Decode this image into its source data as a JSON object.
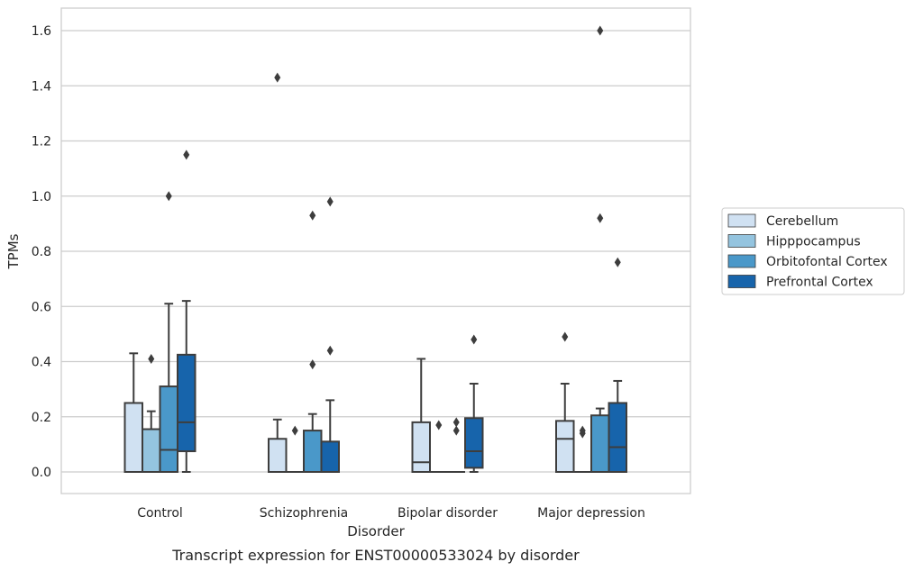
{
  "caption": "Transcript expression for ENST00000533024 by disorder",
  "chart_data": {
    "type": "box",
    "xlabel": "Disorder",
    "ylabel": "TPMs",
    "ylim": [
      -0.08,
      1.68
    ],
    "yticks": [
      "0.0",
      "0.2",
      "0.4",
      "0.6",
      "0.8",
      "1.0",
      "1.2",
      "1.4",
      "1.6"
    ],
    "grid": true,
    "legend_position": "right",
    "categories": [
      "Control",
      "Schizophrenia",
      "Bipolar disorder",
      "Major depression"
    ],
    "series": [
      {
        "name": "Cerebellum",
        "color": "#d0e1f2",
        "boxes": [
          {
            "q1": 0.0,
            "median": 0.0,
            "q3": 0.25,
            "whisker_low": 0.0,
            "whisker_high": 0.43,
            "outliers": []
          },
          {
            "q1": 0.0,
            "median": 0.0,
            "q3": 0.12,
            "whisker_low": 0.0,
            "whisker_high": 0.19,
            "outliers": [
              1.43
            ]
          },
          {
            "q1": 0.0,
            "median": 0.035,
            "q3": 0.18,
            "whisker_low": 0.0,
            "whisker_high": 0.41,
            "outliers": []
          },
          {
            "q1": 0.0,
            "median": 0.12,
            "q3": 0.185,
            "whisker_low": 0.0,
            "whisker_high": 0.32,
            "outliers": [
              0.49
            ]
          }
        ]
      },
      {
        "name": "Hipppocampus",
        "color": "#94c4df",
        "boxes": [
          {
            "q1": 0.0,
            "median": 0.0,
            "q3": 0.155,
            "whisker_low": 0.0,
            "whisker_high": 0.22,
            "outliers": [
              0.41
            ]
          },
          {
            "q1": 0.0,
            "median": 0.0,
            "q3": 0.0,
            "whisker_low": 0.0,
            "whisker_high": 0.0,
            "outliers": [
              0.15
            ]
          },
          {
            "q1": 0.0,
            "median": 0.0,
            "q3": 0.0,
            "whisker_low": 0.0,
            "whisker_high": 0.0,
            "outliers": [
              0.17
            ]
          },
          {
            "q1": 0.0,
            "median": 0.0,
            "q3": 0.0,
            "whisker_low": 0.0,
            "whisker_high": 0.0,
            "outliers": [
              0.14,
              0.15
            ]
          }
        ]
      },
      {
        "name": "Orbitofontal Cortex",
        "color": "#4a98c9",
        "boxes": [
          {
            "q1": 0.0,
            "median": 0.08,
            "q3": 0.31,
            "whisker_low": 0.0,
            "whisker_high": 0.61,
            "outliers": [
              1.0
            ]
          },
          {
            "q1": 0.0,
            "median": 0.0,
            "q3": 0.15,
            "whisker_low": 0.0,
            "whisker_high": 0.21,
            "outliers": [
              0.39,
              0.93
            ]
          },
          {
            "q1": 0.0,
            "median": 0.0,
            "q3": 0.0,
            "whisker_low": 0.0,
            "whisker_high": 0.0,
            "outliers": [
              0.15,
              0.18
            ]
          },
          {
            "q1": 0.0,
            "median": 0.0,
            "q3": 0.205,
            "whisker_low": 0.0,
            "whisker_high": 0.23,
            "outliers": [
              0.92,
              1.6
            ]
          }
        ]
      },
      {
        "name": "Prefrontal Cortex",
        "color": "#1764ab",
        "boxes": [
          {
            "q1": 0.075,
            "median": 0.18,
            "q3": 0.425,
            "whisker_low": 0.0,
            "whisker_high": 0.62,
            "outliers": [
              1.15
            ]
          },
          {
            "q1": 0.0,
            "median": 0.0,
            "q3": 0.11,
            "whisker_low": 0.0,
            "whisker_high": 0.26,
            "outliers": [
              0.44,
              0.98
            ]
          },
          {
            "q1": 0.015,
            "median": 0.075,
            "q3": 0.195,
            "whisker_low": 0.0,
            "whisker_high": 0.32,
            "outliers": [
              0.48
            ]
          },
          {
            "q1": 0.0,
            "median": 0.09,
            "q3": 0.25,
            "whisker_low": 0.0,
            "whisker_high": 0.33,
            "outliers": [
              0.76
            ]
          }
        ]
      }
    ]
  }
}
